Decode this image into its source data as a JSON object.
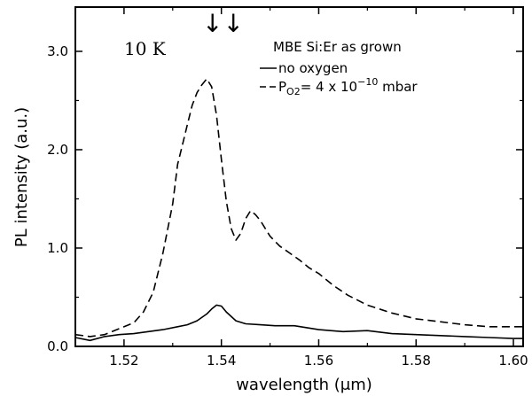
{
  "chart_data": {
    "type": "line",
    "xlabel": "wavelength (μm)",
    "ylabel": "PL intensity (a.u.)",
    "xlim": [
      1.51,
      1.602
    ],
    "ylim": [
      0.0,
      3.45
    ],
    "x_ticks": [
      1.52,
      1.54,
      1.56,
      1.58,
      1.6
    ],
    "x_tick_labels": [
      "1.52",
      "1.54",
      "1.56",
      "1.58",
      "1.60"
    ],
    "y_ticks": [
      0.0,
      1.0,
      2.0,
      3.0
    ],
    "y_tick_labels": [
      "0.0",
      "1.0",
      "2.0",
      "3.0"
    ],
    "grid": false,
    "legend_position": "top-right",
    "annotations": {
      "temperature": "10 K",
      "sample": "MBE Si:Er as grown",
      "arrows": "↓↓"
    },
    "legend": {
      "solid_label": "no oxygen",
      "dashed_prefix": "P",
      "dashed_sub": "O2",
      "dashed_mid": "= 4 x 10",
      "dashed_sup": "−10",
      "dashed_suffix": " mbar"
    },
    "series": [
      {
        "name": "no oxygen",
        "style": "solid",
        "x": [
          1.51,
          1.513,
          1.516,
          1.519,
          1.522,
          1.525,
          1.528,
          1.531,
          1.533,
          1.535,
          1.537,
          1.538,
          1.539,
          1.54,
          1.541,
          1.543,
          1.545,
          1.548,
          1.551,
          1.555,
          1.56,
          1.565,
          1.57,
          1.575,
          1.58,
          1.585,
          1.59,
          1.595,
          1.6,
          1.602
        ],
        "y": [
          0.09,
          0.06,
          0.1,
          0.12,
          0.13,
          0.15,
          0.17,
          0.2,
          0.22,
          0.26,
          0.33,
          0.38,
          0.42,
          0.41,
          0.35,
          0.26,
          0.23,
          0.22,
          0.21,
          0.21,
          0.17,
          0.15,
          0.16,
          0.13,
          0.12,
          0.11,
          0.1,
          0.09,
          0.08,
          0.08
        ]
      },
      {
        "name": "P_O2 = 4 x 10^-10 mbar",
        "style": "dashed",
        "x": [
          1.51,
          1.513,
          1.516,
          1.519,
          1.522,
          1.524,
          1.526,
          1.528,
          1.53,
          1.531,
          1.532,
          1.533,
          1.534,
          1.535,
          1.536,
          1.537,
          1.538,
          1.539,
          1.54,
          1.541,
          1.542,
          1.543,
          1.544,
          1.545,
          1.546,
          1.547,
          1.548,
          1.549,
          1.55,
          1.552,
          1.554,
          1.556,
          1.558,
          1.56,
          1.563,
          1.566,
          1.57,
          1.575,
          1.58,
          1.585,
          1.59,
          1.595,
          1.6,
          1.602
        ],
        "y": [
          0.12,
          0.1,
          0.12,
          0.18,
          0.24,
          0.35,
          0.55,
          0.95,
          1.45,
          1.85,
          2.05,
          2.25,
          2.45,
          2.58,
          2.66,
          2.72,
          2.64,
          2.35,
          1.9,
          1.48,
          1.2,
          1.08,
          1.15,
          1.3,
          1.38,
          1.34,
          1.28,
          1.2,
          1.12,
          1.02,
          0.95,
          0.88,
          0.8,
          0.74,
          0.62,
          0.52,
          0.42,
          0.34,
          0.28,
          0.25,
          0.22,
          0.2,
          0.2,
          0.2
        ]
      }
    ]
  }
}
